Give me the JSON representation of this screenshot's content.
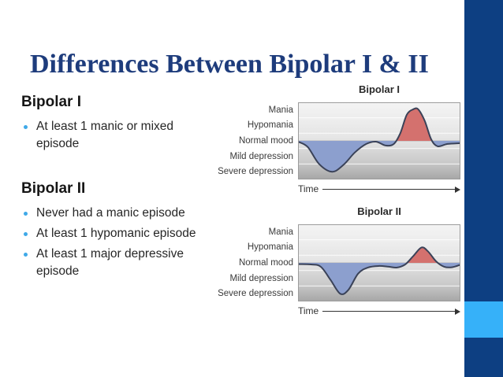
{
  "slide": {
    "title": "Differences Between Bipolar I & II"
  },
  "sections": [
    {
      "heading": "Bipolar I",
      "bullets": [
        "At least 1 manic or mixed\nepisode"
      ]
    },
    {
      "heading": "Bipolar II",
      "bullets": [
        "Never had a manic episode",
        "At least 1 hypomanic episode",
        "At least 1 major depressive\nepisode"
      ]
    }
  ],
  "chart_data": [
    {
      "type": "area",
      "title": "Bipolar I",
      "xlabel": "Time",
      "y_tick_labels": [
        "Mania",
        "Hypomania",
        "Normal mood",
        "Mild depression",
        "Severe depression"
      ],
      "y_numeric_scale": {
        "Mania": 2,
        "Hypomania": 1,
        "Normal mood": 0,
        "Mild depression": -1,
        "Severe depression": -2
      },
      "x_range": [
        0,
        100
      ],
      "ylim": [
        -2.5,
        2.5
      ],
      "grid": "horizontal band boundaries",
      "legend": "none",
      "fill_rule": "area above normal mood = red (mania), below normal mood = blue (depression)",
      "series": [
        {
          "name": "mood level",
          "points": [
            [
              0,
              -0.05
            ],
            [
              6,
              -0.4
            ],
            [
              13,
              -1.5
            ],
            [
              21,
              -2.0
            ],
            [
              28,
              -1.55
            ],
            [
              35,
              -0.75
            ],
            [
              42,
              -0.2
            ],
            [
              48,
              -0.05
            ],
            [
              54,
              -0.3
            ],
            [
              59,
              -0.2
            ],
            [
              63,
              0.5
            ],
            [
              67,
              1.7
            ],
            [
              71,
              2.05
            ],
            [
              74,
              2.05
            ],
            [
              78,
              1.3
            ],
            [
              82,
              0.1
            ],
            [
              86,
              -0.35
            ],
            [
              92,
              -0.2
            ],
            [
              100,
              -0.15
            ]
          ]
        }
      ]
    },
    {
      "type": "area",
      "title": "Bipolar II",
      "xlabel": "Time",
      "y_tick_labels": [
        "Mania",
        "Hypomania",
        "Normal mood",
        "Mild depression",
        "Severe depression"
      ],
      "y_numeric_scale": {
        "Mania": 2,
        "Hypomania": 1,
        "Normal mood": 0,
        "Mild depression": -1,
        "Severe depression": -2
      },
      "x_range": [
        0,
        100
      ],
      "ylim": [
        -2.5,
        2.5
      ],
      "grid": "horizontal band boundaries",
      "legend": "none",
      "fill_rule": "area above normal mood = red (hypomania peak only), below normal mood = blue (depression)",
      "series": [
        {
          "name": "mood level",
          "points": [
            [
              0,
              -0.08
            ],
            [
              8,
              -0.1
            ],
            [
              14,
              -0.25
            ],
            [
              20,
              -1.1
            ],
            [
              26,
              -2.0
            ],
            [
              31,
              -1.75
            ],
            [
              37,
              -0.7
            ],
            [
              43,
              -0.3
            ],
            [
              50,
              -0.2
            ],
            [
              56,
              -0.25
            ],
            [
              61,
              -0.3
            ],
            [
              66,
              -0.1
            ],
            [
              71,
              0.45
            ],
            [
              76,
              1.0
            ],
            [
              80,
              0.75
            ],
            [
              85,
              0.1
            ],
            [
              90,
              -0.25
            ],
            [
              95,
              -0.28
            ],
            [
              100,
              -0.12
            ]
          ]
        }
      ]
    }
  ],
  "colors": {
    "title_text": "#1e3c7c",
    "sidebar_navy": "#0d3f82",
    "sidebar_light_blue": "#36b1f9",
    "bullet_dot": "#3fa9e8",
    "mania_fill": "#d4716e",
    "depression_fill": "#8c9fce",
    "curve_stroke": "#3a4258"
  }
}
